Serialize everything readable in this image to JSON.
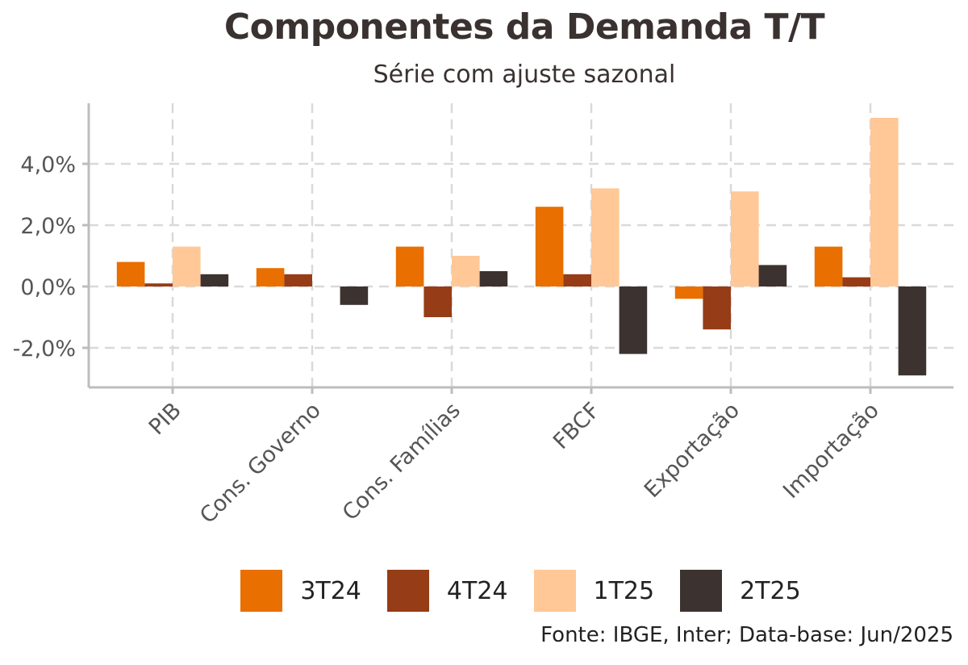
{
  "chart_data": {
    "type": "bar",
    "title": "Componentes da Demanda T/T",
    "subtitle": "Série com ajuste sazonal",
    "caption": "Fonte: IBGE, Inter; Data-base: Jun/2025",
    "xlabel": "",
    "ylabel": "",
    "categories": [
      "PIB",
      "Cons. Governo",
      "Cons. Famílias",
      "FBCF",
      "Exportação",
      "Importação"
    ],
    "series": [
      {
        "name": "3T24",
        "color": "#e86f00",
        "values": [
          0.8,
          0.6,
          1.3,
          2.6,
          -0.4,
          1.3
        ]
      },
      {
        "name": "4T24",
        "color": "#963c16",
        "values": [
          0.1,
          0.4,
          -1.0,
          0.4,
          -1.4,
          0.3
        ]
      },
      {
        "name": "1T25",
        "color": "#ffc896",
        "values": [
          1.3,
          0.0,
          1.0,
          3.2,
          3.1,
          5.5
        ]
      },
      {
        "name": "2T25",
        "color": "#3c3230",
        "values": [
          0.4,
          -0.6,
          0.5,
          -2.2,
          0.7,
          -2.9
        ]
      }
    ],
    "yticks": [
      -2,
      0,
      2,
      4
    ],
    "ytick_labels": [
      "-2,0%",
      "0,0%",
      "2,0%",
      "4,0%"
    ],
    "ylim": [
      -3.3,
      5.9
    ],
    "grid": true,
    "legend_position": "bottom"
  }
}
